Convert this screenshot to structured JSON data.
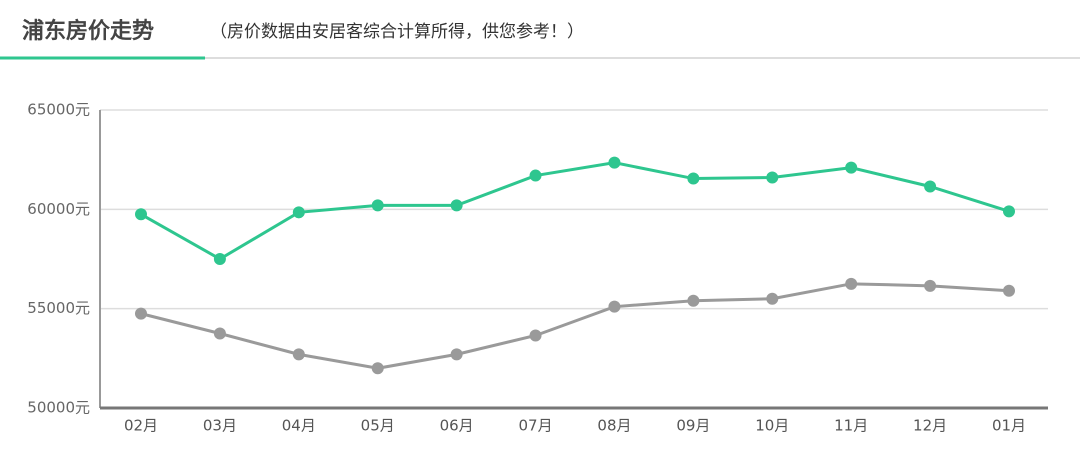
{
  "chart_data": {
    "type": "line",
    "title": "浦东房价走势",
    "subtitle": "（房价数据由安居客综合计算所得，供您参考！）",
    "categories": [
      "02月",
      "03月",
      "04月",
      "05月",
      "06月",
      "07月",
      "08月",
      "09月",
      "10月",
      "11月",
      "12月",
      "01月"
    ],
    "series": [
      {
        "color": "#2ec68f",
        "values": [
          59750,
          57500,
          59850,
          60200,
          60200,
          61700,
          62350,
          61550,
          61600,
          62100,
          61150,
          59900
        ]
      },
      {
        "color": "#9a9a9a",
        "values": [
          54750,
          53750,
          52700,
          52000,
          52700,
          53650,
          55100,
          55400,
          55500,
          56250,
          56150,
          55900
        ]
      }
    ],
    "ylim": [
      50000,
      65000
    ],
    "yticks": [
      {
        "value": 50000,
        "label": "50000元"
      },
      {
        "value": 55000,
        "label": "55000元"
      },
      {
        "value": 60000,
        "label": "60000元"
      },
      {
        "value": 65000,
        "label": "65000元"
      }
    ],
    "grid": true
  }
}
